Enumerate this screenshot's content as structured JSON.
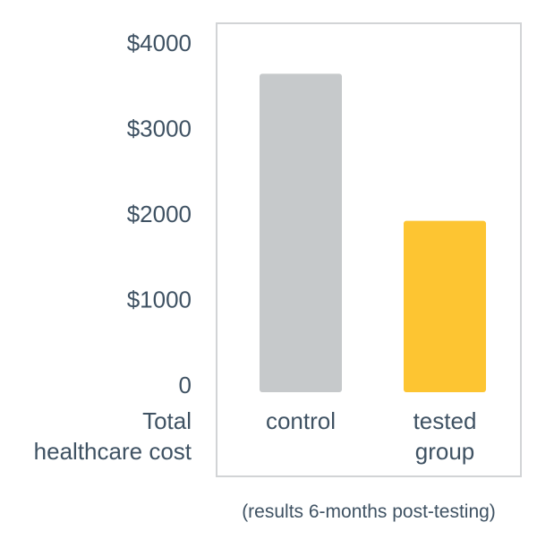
{
  "chart_data": {
    "type": "bar",
    "categories": [
      [
        "control"
      ],
      [
        "tested",
        "group"
      ]
    ],
    "values": [
      3640,
      1920
    ],
    "colors": [
      "#c6c9cb",
      "#fdc532"
    ],
    "ylim": [
      0,
      4000
    ],
    "yticks": [
      0,
      1000,
      2000,
      3000,
      4000
    ],
    "ytick_labels": [
      "0",
      "$1000",
      "$2000",
      "$3000",
      "$4000"
    ],
    "ylabel": [
      "Total",
      "healthcare cost"
    ],
    "footnote": "(results 6-months post-testing)",
    "frame_color": "#d2d4d6",
    "text_color": "#3f5263",
    "grid": false
  }
}
